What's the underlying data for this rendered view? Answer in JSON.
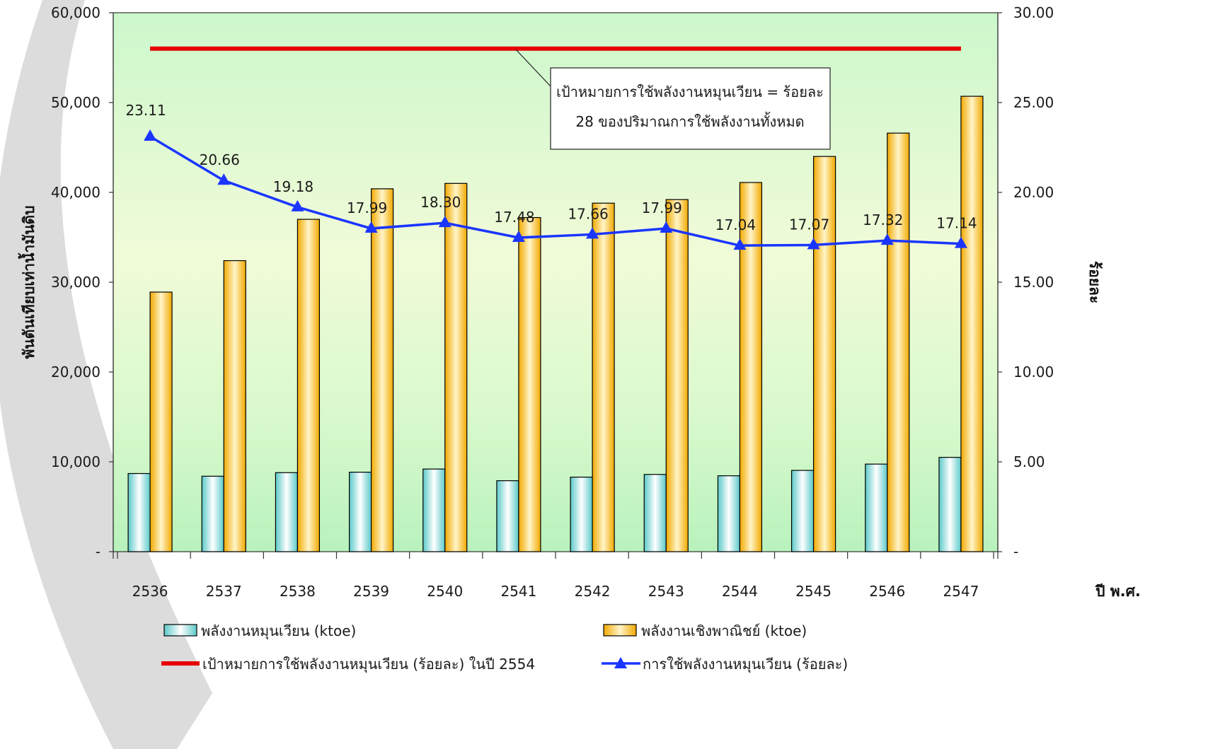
{
  "chart_data": {
    "type": "bar",
    "categories": [
      "2536",
      "2537",
      "2538",
      "2539",
      "2540",
      "2541",
      "2542",
      "2543",
      "2544",
      "2545",
      "2546",
      "2547"
    ],
    "series": [
      {
        "name": "พลังงานหมุนเวียน (ktoe)",
        "kind": "bar",
        "axis": "left",
        "values": [
          8700,
          8400,
          8800,
          8850,
          9200,
          7900,
          8300,
          8600,
          8450,
          9050,
          9750,
          10500
        ]
      },
      {
        "name": "พลังงานเชิงพาณิชย์ (ktoe)",
        "kind": "bar",
        "axis": "left",
        "values": [
          28900,
          32400,
          37000,
          40400,
          41000,
          37200,
          38800,
          39200,
          41100,
          44000,
          46600,
          50700
        ]
      },
      {
        "name": "เป้าหมายการใช้พลังงานหมุนเวียน (ร้อยละ) ในปี 2554",
        "kind": "line",
        "axis": "right",
        "values": [
          28,
          28,
          28,
          28,
          28,
          28,
          28,
          28,
          28,
          28,
          28,
          28
        ]
      },
      {
        "name": "การใช้พลังงานหมุนเวียน (ร้อยละ)",
        "kind": "line",
        "axis": "right",
        "values": [
          23.11,
          20.66,
          19.18,
          17.99,
          18.3,
          17.48,
          17.66,
          17.99,
          17.04,
          17.07,
          17.32,
          17.14
        ],
        "labels": [
          "23.11",
          "20.66",
          "19.18",
          "17.99",
          "18.30",
          "17.48",
          "17.66",
          "17.99",
          "17.04",
          "17.07",
          "17.32",
          "17.14"
        ]
      }
    ],
    "ylabel": "พันตันเทียบเท่าน้ำมันดิบ",
    "y2label": "ร้อยละ",
    "xlabel": "ปี พ.ศ.",
    "ylim": [
      0,
      60000
    ],
    "y2lim": [
      0,
      30
    ],
    "yticks": [
      "-",
      "10,000",
      "20,000",
      "30,000",
      "40,000",
      "50,000",
      "60,000"
    ],
    "y2ticks": [
      "-",
      "5.00",
      "10.00",
      "15.00",
      "20.00",
      "25.00",
      "30.00"
    ],
    "annotation": [
      "เป้าหมายการใช้พลังงานหมุนเวียน = ร้อยละ",
      "28 ของปริมาณการใช้พลังงานทั้งหมด"
    ],
    "legend_position": "bottom",
    "colors": {
      "renewable_bar": "#7fd8d8",
      "commercial_bar": "#f5b800",
      "target_line": "#e60000",
      "usage_line": "#1a35ff"
    }
  }
}
